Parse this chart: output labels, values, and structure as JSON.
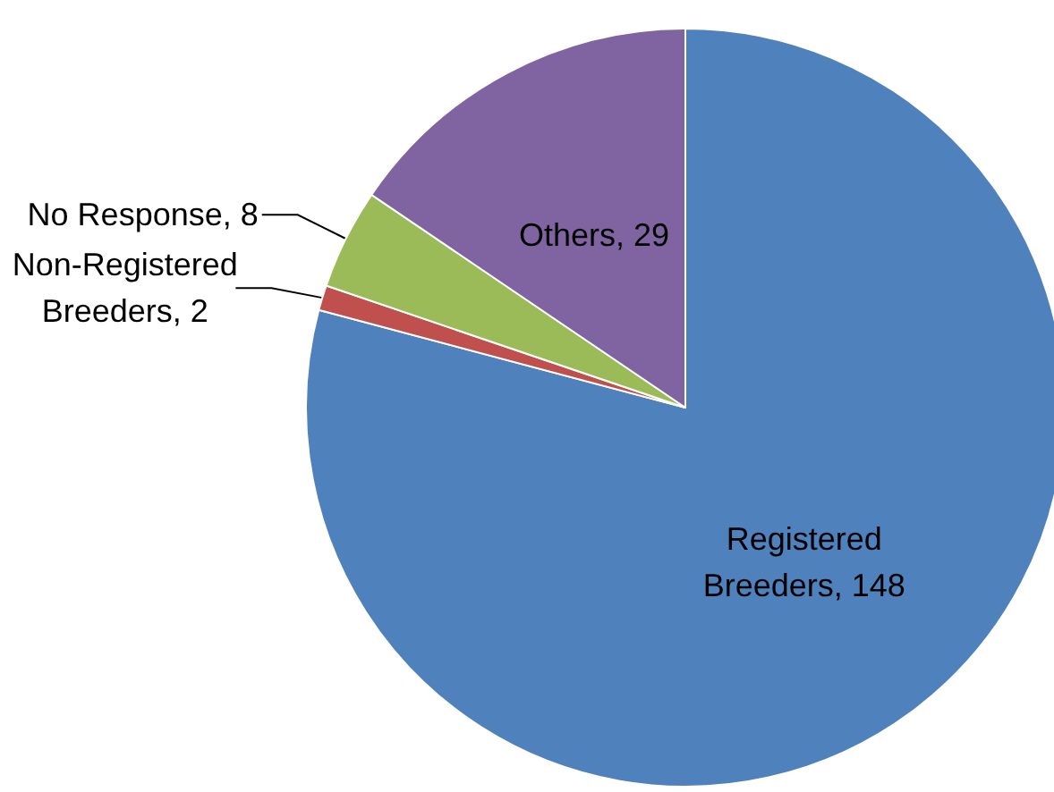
{
  "chart_data": {
    "type": "pie",
    "categories": [
      "Registered Breeders",
      "Non-Registered Breeders",
      "No Response",
      "Others"
    ],
    "values": [
      148,
      2,
      8,
      29
    ],
    "value_labels": [
      ", 148",
      ", 2",
      ", 8",
      ", 29"
    ],
    "colors": [
      "#4f81bd",
      "#c0504d",
      "#9bbb59",
      "#8064a2"
    ],
    "legend": false
  }
}
